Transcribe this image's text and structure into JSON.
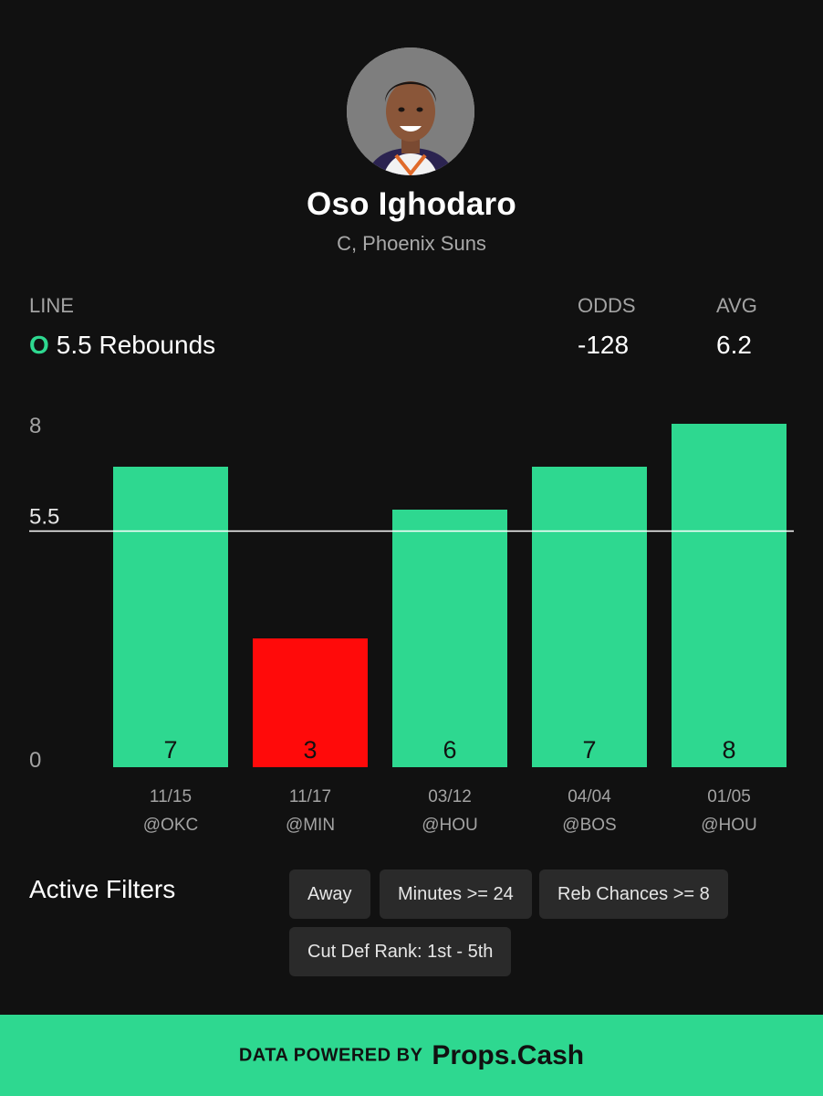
{
  "player": {
    "name": "Oso Ighodaro",
    "subtitle": "C, Phoenix Suns"
  },
  "line": {
    "label": "LINE",
    "side": "O",
    "value": "5.5 Rebounds"
  },
  "odds": {
    "label": "ODDS",
    "value": "-128"
  },
  "avg": {
    "label": "AVG",
    "value": "6.2"
  },
  "colors": {
    "accent": "#2ed890",
    "miss": "#ff0a0a",
    "background": "#111111"
  },
  "chart_data": {
    "type": "bar",
    "categories": [
      "11/15",
      "11/17",
      "03/12",
      "04/04",
      "01/05"
    ],
    "opponents": [
      "@OKC",
      "@MIN",
      "@HOU",
      "@BOS",
      "@HOU"
    ],
    "values": [
      7,
      3,
      6,
      7,
      8
    ],
    "line": 5.5,
    "ylim": [
      0,
      8
    ],
    "yticks": [
      "0",
      "5.5",
      "8"
    ],
    "ylabel": "",
    "xlabel": "",
    "title": ""
  },
  "filters": {
    "title": "Active Filters",
    "chips": [
      "Away",
      "Minutes >= 24",
      "Reb Chances >= 8",
      "Cut Def Rank: 1st - 5th"
    ]
  },
  "footer": {
    "prefix": "DATA POWERED BY",
    "brand": "Props.Cash"
  }
}
